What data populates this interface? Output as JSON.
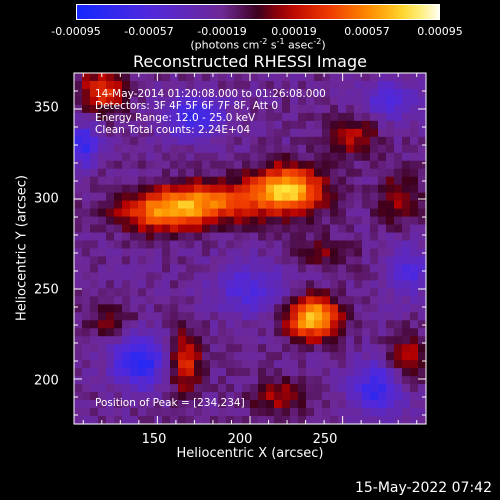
{
  "chart_data": {
    "type": "heatmap",
    "title": "Reconstructed RHESSI Image",
    "xlabel": "Heliocentric X (arcsec)",
    "ylabel": "Heliocentric Y (arcsec)",
    "xlim": [
      105,
      295
    ],
    "ylim": [
      175,
      370
    ],
    "xticks": [
      150,
      200,
      250
    ],
    "yticks": [
      200,
      250,
      300,
      350
    ],
    "colorbar": {
      "ticks": [
        "-0.00095",
        "-0.00057",
        "-0.00019",
        "0.00019",
        "0.00057",
        "0.00095"
      ],
      "units_text": "(photons cm",
      "units_exp1": "-2",
      "units_mid": " s",
      "units_exp2": "-1",
      "units_mid2": " asec",
      "units_exp3": "-2",
      "units_end": ")",
      "range": [
        -0.00095,
        0.00095
      ]
    },
    "annotations": [
      "14-May-2014 01:20:08.000 to 01:26:08.000",
      "Detectors: 3F 4F 5F 6F 7F 8F, Att 0",
      "Energy Range: 12.0 - 25.0 keV",
      "Clean     Total counts: 2.24E+04"
    ],
    "peak_label": "Position of Peak = [234,234]",
    "sources": [
      {
        "x": 220,
        "y": 305,
        "amp": 1.0,
        "sx": 14,
        "sy": 9
      },
      {
        "x": 175,
        "y": 298,
        "amp": 0.7,
        "sx": 20,
        "sy": 8
      },
      {
        "x": 150,
        "y": 292,
        "amp": 0.55,
        "sx": 16,
        "sy": 8
      },
      {
        "x": 234,
        "y": 234,
        "amp": 1.0,
        "sx": 10,
        "sy": 8
      },
      {
        "x": 120,
        "y": 360,
        "amp": 0.55,
        "sx": 9,
        "sy": 9
      },
      {
        "x": 165,
        "y": 210,
        "amp": 0.55,
        "sx": 6,
        "sy": 12
      },
      {
        "x": 255,
        "y": 335,
        "amp": 0.4,
        "sx": 10,
        "sy": 7
      },
      {
        "x": 280,
        "y": 300,
        "amp": 0.35,
        "sx": 8,
        "sy": 10
      },
      {
        "x": 285,
        "y": 210,
        "amp": 0.4,
        "sx": 8,
        "sy": 10
      },
      {
        "x": 215,
        "y": 190,
        "amp": 0.35,
        "sx": 10,
        "sy": 7
      },
      {
        "x": 125,
        "y": 232,
        "amp": 0.3,
        "sx": 8,
        "sy": 6
      },
      {
        "x": 240,
        "y": 270,
        "amp": 0.25,
        "sx": 12,
        "sy": 6
      },
      {
        "x": 170,
        "y": 345,
        "amp": -0.55,
        "sx": 12,
        "sy": 8
      },
      {
        "x": 140,
        "y": 210,
        "amp": -0.7,
        "sx": 10,
        "sy": 10
      },
      {
        "x": 270,
        "y": 195,
        "amp": -0.6,
        "sx": 10,
        "sy": 10
      },
      {
        "x": 200,
        "y": 250,
        "amp": -0.4,
        "sx": 14,
        "sy": 10
      },
      {
        "x": 275,
        "y": 355,
        "amp": -0.4,
        "sx": 10,
        "sy": 8
      },
      {
        "x": 285,
        "y": 260,
        "amp": -0.4,
        "sx": 8,
        "sy": 10
      },
      {
        "x": 110,
        "y": 330,
        "amp": -0.6,
        "sx": 6,
        "sy": 8
      }
    ],
    "background": -0.2
  },
  "footer": "15-May-2022 07:42"
}
